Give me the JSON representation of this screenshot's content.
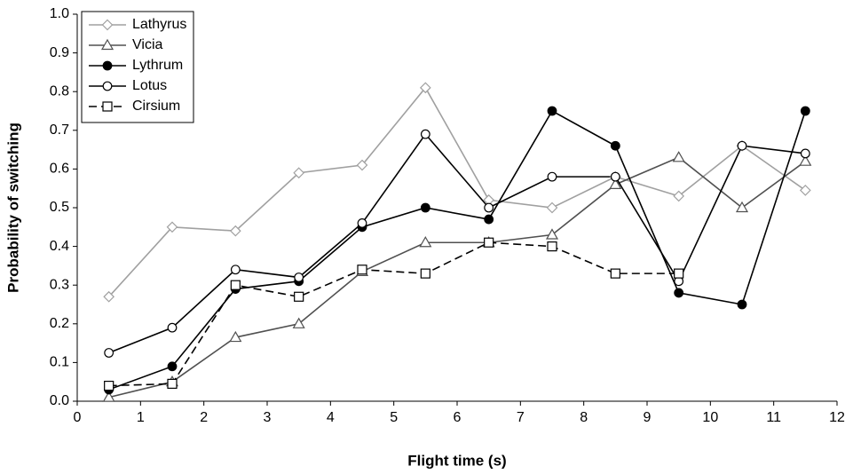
{
  "chart_data": {
    "type": "line",
    "xlabel": "Flight time (s)",
    "ylabel": "Probability of switching",
    "x": [
      0.5,
      1.5,
      2.5,
      3.5,
      4.5,
      5.5,
      6.5,
      7.5,
      8.5,
      9.5,
      10.5,
      11.5
    ],
    "series": [
      {
        "name": "Lathyrus",
        "color": "#a0a0a0",
        "marker": "diamond",
        "marker_filled": false,
        "dashed": false,
        "values": [
          0.27,
          0.45,
          0.44,
          0.59,
          0.61,
          0.81,
          0.52,
          0.5,
          0.58,
          0.53,
          0.66,
          0.545
        ]
      },
      {
        "name": "Vicia",
        "color": "#505050",
        "marker": "triangle",
        "marker_filled": false,
        "dashed": false,
        "values": [
          0.01,
          0.05,
          0.165,
          0.2,
          0.335,
          0.41,
          0.41,
          0.43,
          0.56,
          0.63,
          0.5,
          0.62
        ]
      },
      {
        "name": "Lythrum",
        "color": "#000000",
        "marker": "circle",
        "marker_filled": true,
        "dashed": false,
        "values": [
          0.03,
          0.09,
          0.29,
          0.31,
          0.45,
          0.5,
          0.47,
          0.75,
          0.66,
          0.28,
          0.25,
          0.75
        ]
      },
      {
        "name": "Lotus",
        "color": "#000000",
        "marker": "circle",
        "marker_filled": false,
        "dashed": false,
        "values": [
          0.125,
          0.19,
          0.34,
          0.32,
          0.46,
          0.69,
          0.5,
          0.58,
          0.58,
          0.31,
          0.66,
          0.64
        ]
      },
      {
        "name": "Cirsium",
        "color": "#000000",
        "marker": "square",
        "marker_filled": false,
        "dashed": true,
        "values": [
          0.04,
          0.045,
          0.3,
          0.27,
          0.34,
          0.33,
          0.41,
          0.4,
          0.33,
          0.33,
          null,
          null
        ]
      }
    ],
    "xlim": [
      0,
      12
    ],
    "xticks": [
      0,
      1,
      2,
      3,
      4,
      5,
      6,
      7,
      8,
      9,
      10,
      11,
      12
    ],
    "ylim": [
      0,
      1
    ],
    "yticks": [
      {
        "value": 0,
        "label": "0.0"
      },
      0.1,
      0.2,
      0.3,
      0.4,
      0.5,
      0.6,
      0.7,
      0.8,
      0.9,
      {
        "value": 1,
        "label": "1.0"
      }
    ],
    "legend": "upper-left"
  }
}
